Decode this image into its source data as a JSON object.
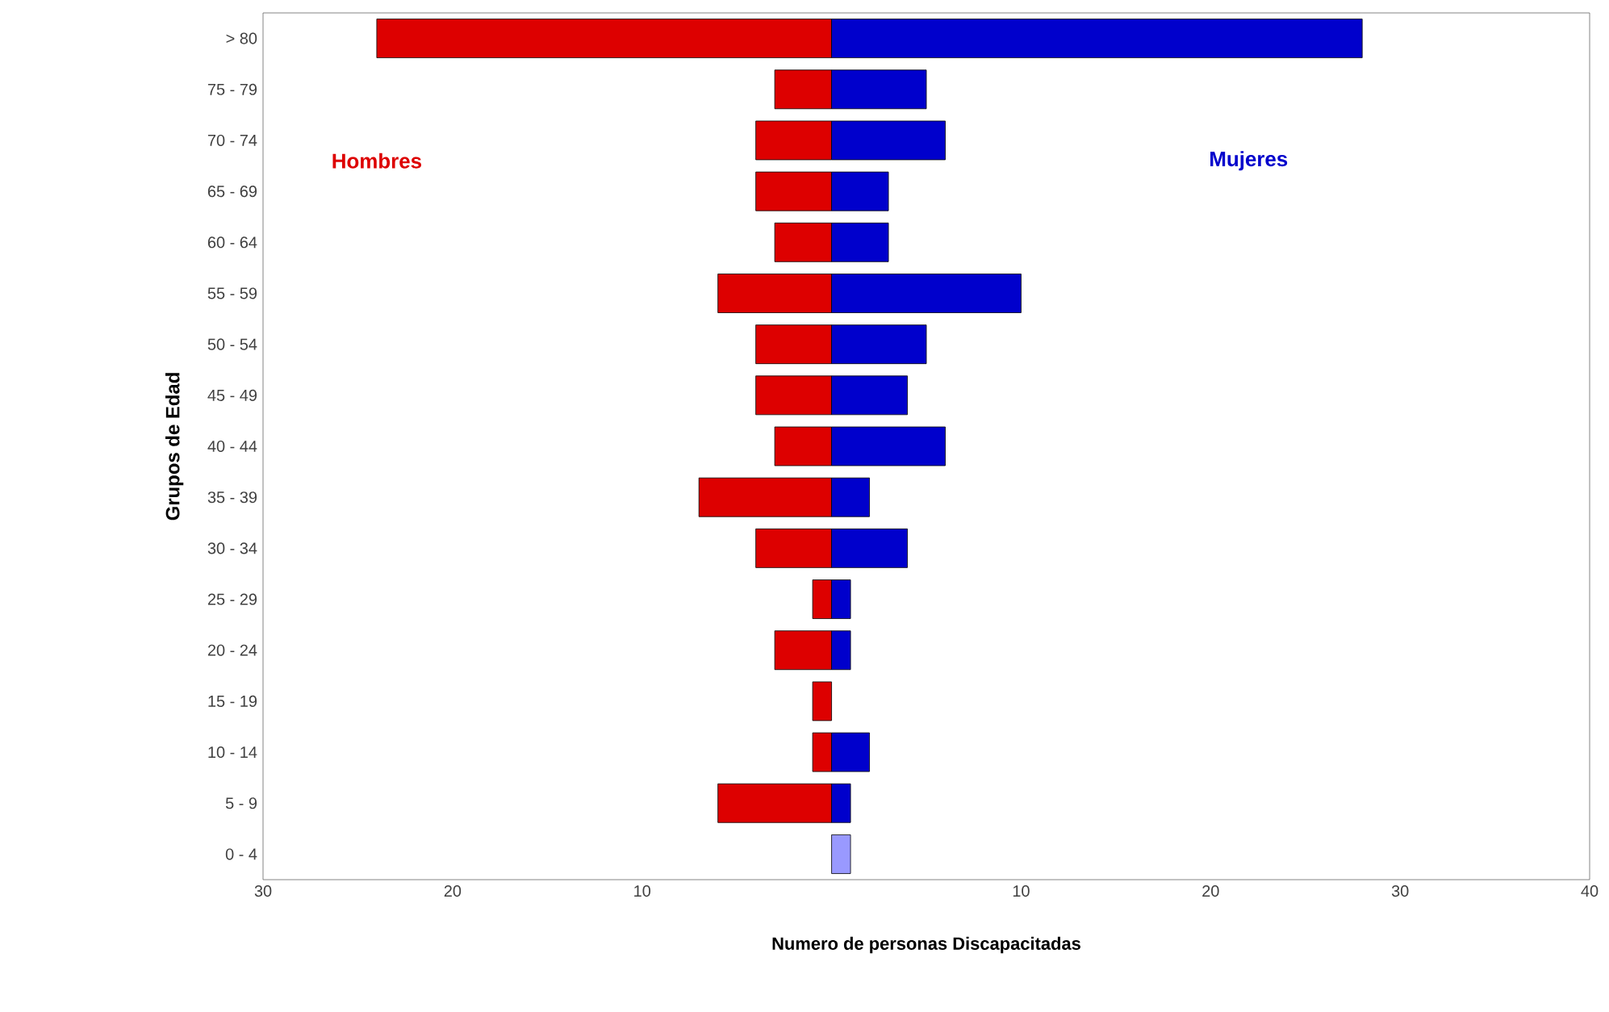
{
  "chart_data": {
    "type": "bar",
    "orientation": "horizontal",
    "xlabel": "Numero de personas  Discapacitadas",
    "ylabel": "Grupos de Edad",
    "categories": [
      "> 80",
      "75 - 79",
      "70 - 74",
      "65 - 69",
      "60 - 64",
      "55 - 59",
      "50 - 54",
      "45 - 49",
      "40 - 44",
      "35 - 39",
      "30 - 34",
      "25 - 29",
      "20 - 24",
      "15 - 19",
      "10 - 14",
      "5 - 9",
      "0 - 4"
    ],
    "series": [
      {
        "name": "Hombres",
        "color": "#dd0000",
        "values": [
          -24,
          -3,
          -4,
          -4,
          -3,
          -6,
          -4,
          -4,
          -3,
          -7,
          -4,
          -1,
          -3,
          -1,
          -1,
          -6,
          0
        ]
      },
      {
        "name": "Mujeres",
        "color": "#0000cc",
        "colors": [
          "#0000cc",
          "#0000cc",
          "#0000cc",
          "#0000cc",
          "#0000cc",
          "#0000cc",
          "#0000cc",
          "#0000cc",
          "#0000cc",
          "#0000cc",
          "#0000cc",
          "#0000cc",
          "#0000cc",
          "#0000cc",
          "#0000cc",
          "#0000cc",
          "#9999ff"
        ],
        "values": [
          28,
          5,
          6,
          3,
          3,
          10,
          5,
          4,
          6,
          2,
          4,
          1,
          1,
          0,
          2,
          1,
          1
        ]
      }
    ],
    "xlim": [
      -30,
      40
    ],
    "xticks": [
      {
        "value": -30,
        "label": "30"
      },
      {
        "value": -20,
        "label": "20"
      },
      {
        "value": -10,
        "label": "10"
      },
      10,
      20,
      30,
      40
    ],
    "stacked": true,
    "grid": false
  }
}
